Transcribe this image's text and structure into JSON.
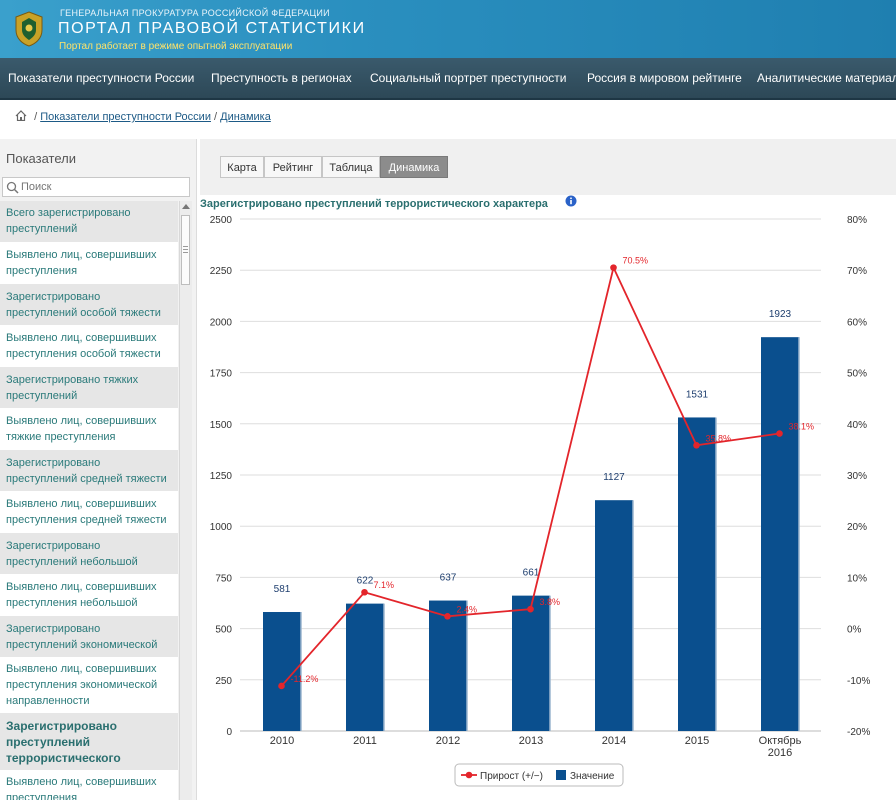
{
  "header": {
    "org": "ГЕНЕРАЛЬНАЯ ПРОКУРАТУРА РОССИЙСКОЙ ФЕДЕРАЦИИ",
    "title": "ПОРТАЛ ПРАВОВОЙ СТАТИСТИКИ",
    "subtitle": "Портал работает в режиме опытной эксплуатации"
  },
  "nav": {
    "items": [
      "Показатели преступности России",
      "Преступность в регионах",
      "Социальный портрет преступности",
      "Россия в мировом рейтинге",
      "Аналитические материалы"
    ]
  },
  "breadcrumb": {
    "items": [
      "Показатели преступности России",
      "Динамика"
    ],
    "separator": "/"
  },
  "sidebar": {
    "title": "Показатели",
    "search_placeholder": "Поиск",
    "items": [
      "Всего зарегистрировано преступлений",
      "Выявлено лиц, совершивших преступления",
      "Зарегистрировано преступлений особой тяжести",
      "Выявлено лиц, совершивших преступления особой тяжести",
      "Зарегистрировано тяжких преступлений",
      "Выявлено лиц, совершивших тяжкие преступления",
      "Зарегистрировано преступлений средней тяжести",
      "Выявлено лиц, совершивших преступления средней тяжести",
      "Зарегистрировано преступлений небольшой тяжести",
      "Выявлено лиц, совершивших преступления небольшой тяжести",
      "Зарегистрировано преступлений экономической направленности",
      "Выявлено лиц, совершивших преступления экономической направленности",
      "Зарегистрировано преступлений террористического характера",
      "Выявлено лиц, совершивших преступления террористического"
    ],
    "active_index": 12
  },
  "tabs": {
    "items": [
      "Карта",
      "Рейтинг",
      "Таблица",
      "Динамика"
    ],
    "active_index": 3
  },
  "colors": {
    "bar": "#0a4f8e",
    "line": "#e3252b",
    "accent_text": "#2a6f6f",
    "header_bg": "#2a8fbf",
    "nav_bg": "#2d4857"
  },
  "chart_data": {
    "type": "bar",
    "title": "Зарегистрировано преступлений террористического характера",
    "categories": [
      "2010",
      "2011",
      "2012",
      "2013",
      "2014",
      "2015",
      "Октябрь 2016"
    ],
    "series": [
      {
        "name": "Значение",
        "type": "bar",
        "axis": "left",
        "values": [
          581,
          622,
          637,
          661,
          1127,
          1531,
          1923
        ]
      },
      {
        "name": "Прирост (+/−)",
        "type": "line",
        "axis": "right",
        "values": [
          -11.2,
          7.1,
          2.4,
          3.8,
          70.5,
          35.8,
          38.1
        ]
      }
    ],
    "bar_labels": [
      "581",
      "622",
      "637",
      "661",
      "1127",
      "1531",
      "1923"
    ],
    "line_labels": [
      "-11.2%",
      "7.1%",
      "2.4%",
      "3.8%",
      "70.5%",
      "35.8%",
      "38.1%"
    ],
    "left_ticks": [
      "0",
      "250",
      "500",
      "750",
      "1000",
      "1250",
      "1500",
      "1750",
      "2000",
      "2250",
      "2500"
    ],
    "right_ticks": [
      "-20%",
      "-10%",
      "0%",
      "10%",
      "20%",
      "30%",
      "40%",
      "50%",
      "60%",
      "70%",
      "80%"
    ],
    "ylim_left": [
      0,
      2500
    ],
    "ylim_right": [
      -20,
      80
    ],
    "grid": true,
    "legend_position": "bottom"
  }
}
